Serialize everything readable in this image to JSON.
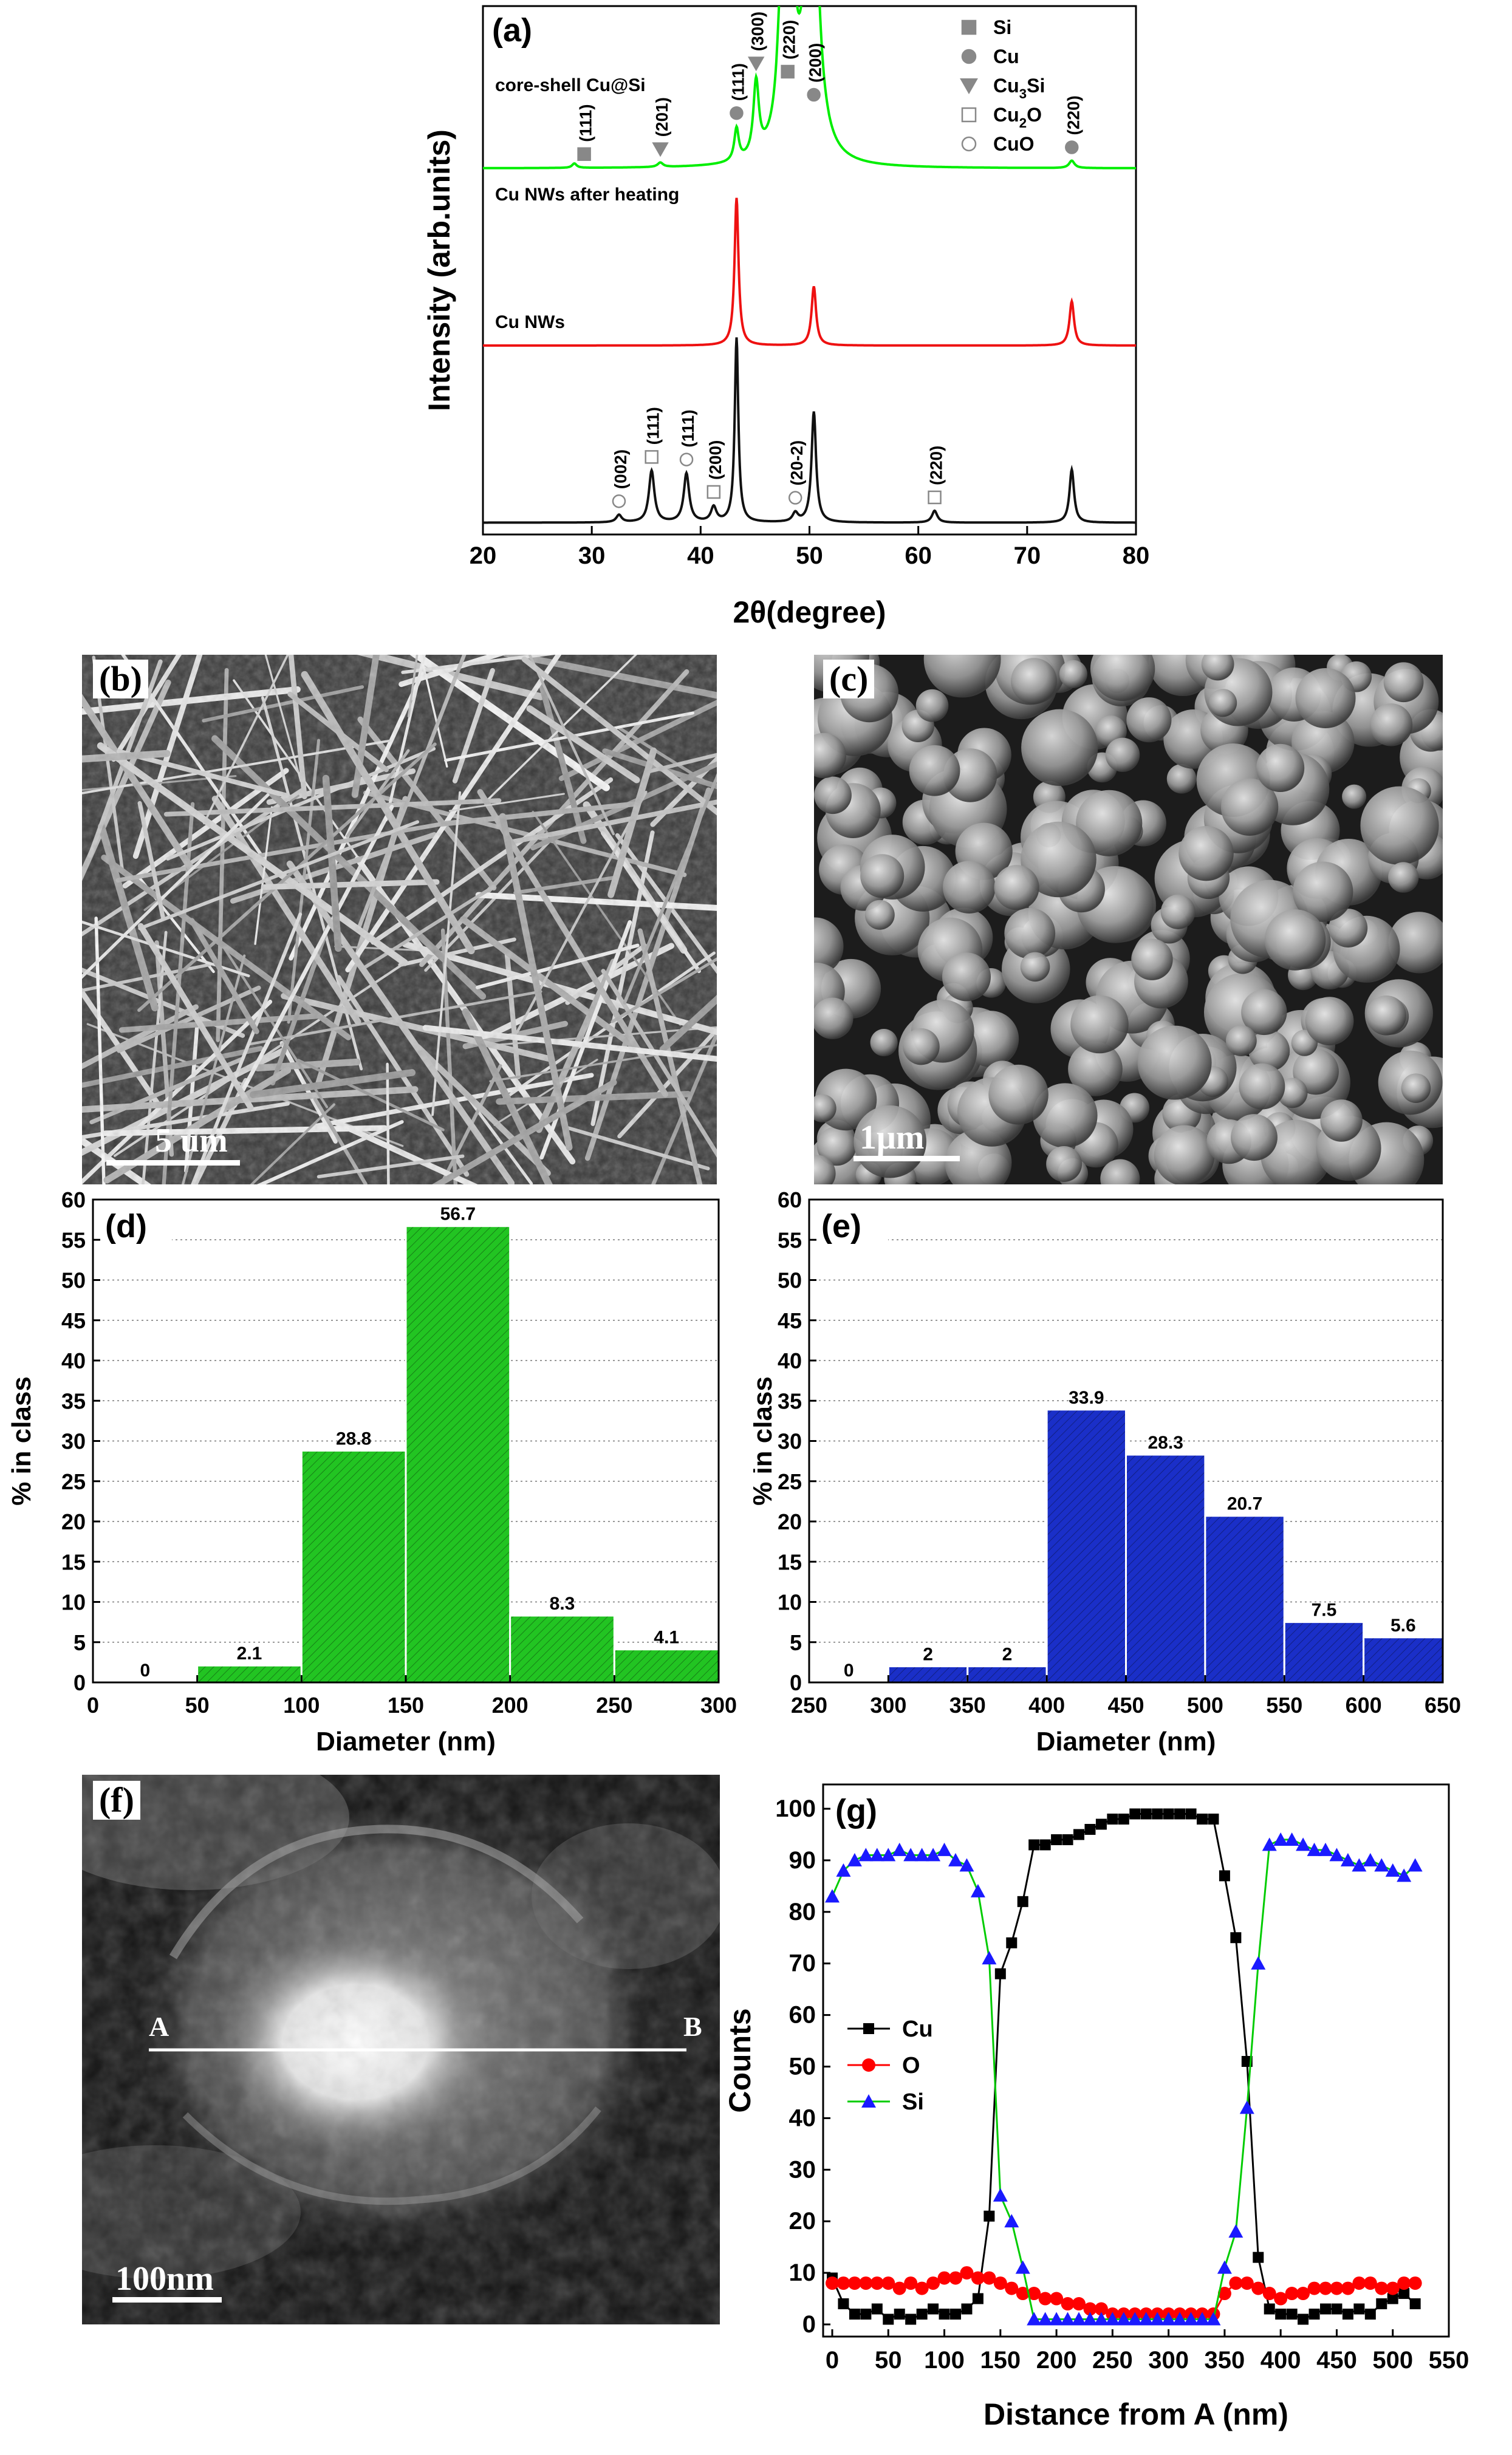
{
  "panels": {
    "a": "(a)",
    "b": "(b)",
    "c": "(c)",
    "d": "(d)",
    "e": "(e)",
    "f": "(f)",
    "g": "(g)"
  },
  "micrographs": {
    "b": {
      "scale_label": "5 um"
    },
    "c": {
      "scale_label": "1μm"
    },
    "f": {
      "scale_label": "100nm",
      "line_start": "A",
      "line_end": "B"
    }
  },
  "chart_data": [
    {
      "panel": "a",
      "type": "line",
      "xlabel": "2θ(degree)",
      "ylabel": "Intensity (arb.units)",
      "xlim": [
        20,
        80
      ],
      "xticks": [
        20,
        30,
        40,
        50,
        60,
        70,
        80
      ],
      "series": [
        {
          "name": "core-shell Cu@Si",
          "color": "#00ee00",
          "offset": 2.4,
          "peaks": [
            [
              28.4,
              0.03,
              0.25
            ],
            [
              36.3,
              0.03,
              0.3
            ],
            [
              43.3,
              0.22,
              0.25
            ],
            [
              45.1,
              0.5,
              0.3
            ],
            [
              47.3,
              0.28,
              0.35
            ],
            [
              48.0,
              2.6,
              0.5
            ],
            [
              50.2,
              2.6,
              0.6
            ],
            [
              74.1,
              0.05,
              0.3
            ]
          ]
        },
        {
          "name": "Cu NWs after heating",
          "color": "#ee1111",
          "offset": 1.2,
          "peaks": [
            [
              43.3,
              1.0,
              0.22
            ],
            [
              50.4,
              0.4,
              0.25
            ],
            [
              74.1,
              0.3,
              0.25
            ]
          ]
        },
        {
          "name": "Cu NWs",
          "color": "#111111",
          "offset": 0.0,
          "peaks": [
            [
              32.5,
              0.05,
              0.3
            ],
            [
              35.5,
              0.35,
              0.3
            ],
            [
              38.7,
              0.33,
              0.3
            ],
            [
              41.2,
              0.1,
              0.3
            ],
            [
              43.3,
              1.25,
              0.2
            ],
            [
              48.7,
              0.06,
              0.3
            ],
            [
              50.4,
              0.75,
              0.25
            ],
            [
              61.5,
              0.08,
              0.3
            ],
            [
              74.1,
              0.36,
              0.25
            ]
          ]
        }
      ],
      "annotations": [
        {
          "text": "(111)",
          "x": 29.3,
          "series": 0,
          "marker": "filled-square"
        },
        {
          "text": "(201)",
          "x": 36.3,
          "series": 0,
          "marker": "filled-triangle"
        },
        {
          "text": "(111)",
          "x": 43.3,
          "series": 0,
          "marker": "filled-circle"
        },
        {
          "text": "(300)",
          "x": 45.1,
          "series": 0,
          "marker": "filled-triangle"
        },
        {
          "text": "(220)",
          "x": 48.0,
          "series": 0,
          "marker": "filled-square"
        },
        {
          "text": "(200)",
          "x": 50.4,
          "series": 0,
          "marker": "filled-circle"
        },
        {
          "text": "(220)",
          "x": 74.1,
          "series": 0,
          "marker": "filled-circle"
        },
        {
          "text": "(002)",
          "x": 32.5,
          "series": 2,
          "marker": "open-circle"
        },
        {
          "text": "(111)",
          "x": 35.5,
          "series": 2,
          "marker": "open-square"
        },
        {
          "text": "(111)",
          "x": 38.7,
          "series": 2,
          "marker": "open-circle"
        },
        {
          "text": "(200)",
          "x": 41.2,
          "series": 2,
          "marker": "open-square"
        },
        {
          "text": "(20-2)",
          "x": 48.7,
          "series": 2,
          "marker": "open-circle"
        },
        {
          "text": "(220)",
          "x": 61.5,
          "series": 2,
          "marker": "open-square"
        }
      ],
      "legend": {
        "placement": "top-right",
        "entries": [
          {
            "label": "Si",
            "marker": "filled-square"
          },
          {
            "label": "Cu",
            "marker": "filled-circle"
          },
          {
            "label": "Cu3Si",
            "marker": "filled-triangle"
          },
          {
            "label": "Cu2O",
            "marker": "open-square"
          },
          {
            "label": "CuO",
            "marker": "open-circle"
          }
        ]
      }
    },
    {
      "panel": "d",
      "type": "bar",
      "xlabel": "Diameter (nm)",
      "ylabel": "% in class",
      "xlim": [
        0,
        300
      ],
      "ylim": [
        0,
        60
      ],
      "xticks": [
        0,
        50,
        100,
        150,
        200,
        250,
        300
      ],
      "yticks": [
        0,
        5,
        10,
        15,
        20,
        25,
        30,
        35,
        40,
        45,
        50,
        55,
        60
      ],
      "bin_edges": [
        0,
        50,
        100,
        150,
        200,
        250,
        300
      ],
      "values": [
        0,
        2.1,
        28.8,
        56.7,
        8.3,
        4.1
      ],
      "labels": [
        "0",
        "2.1",
        "28.8",
        "56.7",
        "8.3",
        "4.1"
      ],
      "color": "#22c422"
    },
    {
      "panel": "e",
      "type": "bar",
      "xlabel": "Diameter (nm)",
      "ylabel": "% in class",
      "xlim": [
        250,
        650
      ],
      "ylim": [
        0,
        60
      ],
      "xticks": [
        250,
        300,
        350,
        400,
        450,
        500,
        550,
        600,
        650
      ],
      "yticks": [
        0,
        5,
        10,
        15,
        20,
        25,
        30,
        35,
        40,
        45,
        50,
        55,
        60
      ],
      "bin_edges": [
        250,
        300,
        350,
        400,
        450,
        500,
        550,
        600,
        650
      ],
      "values": [
        0,
        2,
        2,
        33.9,
        28.3,
        20.7,
        7.5,
        5.6
      ],
      "labels": [
        "0",
        "2",
        "2",
        "33.9",
        "28.3",
        "20.7",
        "7.5",
        "5.6"
      ],
      "color": "#1a2fc8"
    },
    {
      "panel": "g",
      "type": "line",
      "xlabel": "Distance from A (nm)",
      "ylabel": "Counts",
      "xlim": [
        0,
        550
      ],
      "ylim": [
        0,
        100
      ],
      "xticks": [
        0,
        50,
        100,
        150,
        200,
        250,
        300,
        350,
        400,
        450,
        500,
        550
      ],
      "yticks": [
        0,
        10,
        20,
        30,
        40,
        50,
        60,
        70,
        80,
        90,
        100
      ],
      "legend": {
        "placement": "middle-left"
      },
      "series": [
        {
          "name": "Cu",
          "color": "#000000",
          "marker": "square",
          "points": [
            [
              0,
              9
            ],
            [
              10,
              4
            ],
            [
              20,
              2
            ],
            [
              30,
              2
            ],
            [
              40,
              3
            ],
            [
              50,
              1
            ],
            [
              60,
              2
            ],
            [
              70,
              1
            ],
            [
              80,
              2
            ],
            [
              90,
              3
            ],
            [
              100,
              2
            ],
            [
              110,
              2
            ],
            [
              120,
              3
            ],
            [
              130,
              5
            ],
            [
              140,
              21
            ],
            [
              150,
              68
            ],
            [
              160,
              74
            ],
            [
              170,
              82
            ],
            [
              180,
              93
            ],
            [
              190,
              93
            ],
            [
              200,
              94
            ],
            [
              210,
              94
            ],
            [
              220,
              95
            ],
            [
              230,
              96
            ],
            [
              240,
              97
            ],
            [
              250,
              98
            ],
            [
              260,
              98
            ],
            [
              270,
              99
            ],
            [
              280,
              99
            ],
            [
              290,
              99
            ],
            [
              300,
              99
            ],
            [
              310,
              99
            ],
            [
              320,
              99
            ],
            [
              330,
              98
            ],
            [
              340,
              98
            ],
            [
              350,
              87
            ],
            [
              360,
              75
            ],
            [
              370,
              51
            ],
            [
              380,
              13
            ],
            [
              390,
              3
            ],
            [
              400,
              2
            ],
            [
              410,
              2
            ],
            [
              420,
              1
            ],
            [
              430,
              2
            ],
            [
              440,
              3
            ],
            [
              450,
              3
            ],
            [
              460,
              2
            ],
            [
              470,
              3
            ],
            [
              480,
              2
            ],
            [
              490,
              4
            ],
            [
              500,
              5
            ],
            [
              510,
              6
            ],
            [
              520,
              4
            ]
          ]
        },
        {
          "name": "O",
          "color": "#ff0000",
          "marker": "circle",
          "points": [
            [
              0,
              8
            ],
            [
              10,
              8
            ],
            [
              20,
              8
            ],
            [
              30,
              8
            ],
            [
              40,
              8
            ],
            [
              50,
              8
            ],
            [
              60,
              7
            ],
            [
              70,
              8
            ],
            [
              80,
              7
            ],
            [
              90,
              8
            ],
            [
              100,
              9
            ],
            [
              110,
              9
            ],
            [
              120,
              10
            ],
            [
              130,
              9
            ],
            [
              140,
              9
            ],
            [
              150,
              8
            ],
            [
              160,
              7
            ],
            [
              170,
              6
            ],
            [
              180,
              6
            ],
            [
              190,
              5
            ],
            [
              200,
              5
            ],
            [
              210,
              4
            ],
            [
              220,
              4
            ],
            [
              230,
              3
            ],
            [
              240,
              3
            ],
            [
              250,
              2
            ],
            [
              260,
              2
            ],
            [
              270,
              2
            ],
            [
              280,
              2
            ],
            [
              290,
              2
            ],
            [
              300,
              2
            ],
            [
              310,
              2
            ],
            [
              320,
              2
            ],
            [
              330,
              2
            ],
            [
              340,
              2
            ],
            [
              350,
              6
            ],
            [
              360,
              8
            ],
            [
              370,
              8
            ],
            [
              380,
              7
            ],
            [
              390,
              6
            ],
            [
              400,
              5
            ],
            [
              410,
              6
            ],
            [
              420,
              6
            ],
            [
              430,
              7
            ],
            [
              440,
              7
            ],
            [
              450,
              7
            ],
            [
              460,
              7
            ],
            [
              470,
              8
            ],
            [
              480,
              8
            ],
            [
              490,
              7
            ],
            [
              500,
              7
            ],
            [
              510,
              8
            ],
            [
              520,
              8
            ]
          ]
        },
        {
          "name": "Si",
          "color": "#00cc00",
          "marker": "triangle",
          "points": [
            [
              0,
              83
            ],
            [
              10,
              88
            ],
            [
              20,
              90
            ],
            [
              30,
              91
            ],
            [
              40,
              91
            ],
            [
              50,
              91
            ],
            [
              60,
              92
            ],
            [
              70,
              91
            ],
            [
              80,
              91
            ],
            [
              90,
              91
            ],
            [
              100,
              92
            ],
            [
              110,
              90
            ],
            [
              120,
              89
            ],
            [
              130,
              84
            ],
            [
              140,
              71
            ],
            [
              150,
              25
            ],
            [
              160,
              20
            ],
            [
              170,
              11
            ],
            [
              180,
              1
            ],
            [
              190,
              1
            ],
            [
              200,
              1
            ],
            [
              210,
              1
            ],
            [
              220,
              1
            ],
            [
              230,
              1
            ],
            [
              240,
              1
            ],
            [
              250,
              1
            ],
            [
              260,
              1
            ],
            [
              270,
              1
            ],
            [
              280,
              1
            ],
            [
              290,
              1
            ],
            [
              300,
              1
            ],
            [
              310,
              1
            ],
            [
              320,
              1
            ],
            [
              330,
              1
            ],
            [
              340,
              1
            ],
            [
              350,
              11
            ],
            [
              360,
              18
            ],
            [
              370,
              42
            ],
            [
              380,
              70
            ],
            [
              390,
              93
            ],
            [
              400,
              94
            ],
            [
              410,
              94
            ],
            [
              420,
              93
            ],
            [
              430,
              92
            ],
            [
              440,
              92
            ],
            [
              450,
              91
            ],
            [
              460,
              90
            ],
            [
              470,
              89
            ],
            [
              480,
              90
            ],
            [
              490,
              89
            ],
            [
              500,
              88
            ],
            [
              510,
              87
            ],
            [
              520,
              89
            ]
          ]
        }
      ]
    }
  ]
}
